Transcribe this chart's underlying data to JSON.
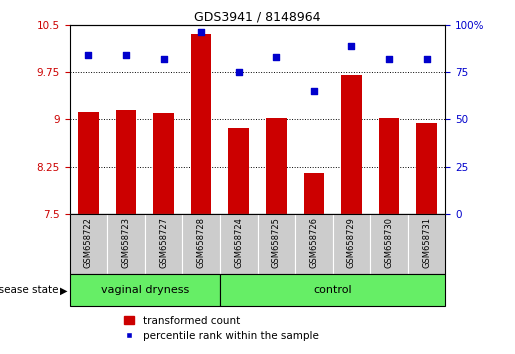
{
  "title": "GDS3941 / 8148964",
  "samples": [
    "GSM658722",
    "GSM658723",
    "GSM658727",
    "GSM658728",
    "GSM658724",
    "GSM658725",
    "GSM658726",
    "GSM658729",
    "GSM658730",
    "GSM658731"
  ],
  "bar_values": [
    9.12,
    9.15,
    9.1,
    10.35,
    8.87,
    9.03,
    8.15,
    9.7,
    9.03,
    8.95
  ],
  "scatter_values": [
    84,
    84,
    82,
    96,
    75,
    83,
    65,
    89,
    82,
    82
  ],
  "bar_color": "#cc0000",
  "scatter_color": "#0000cc",
  "ylim_left": [
    7.5,
    10.5
  ],
  "ylim_right": [
    0,
    100
  ],
  "yticks_left": [
    7.5,
    8.25,
    9.0,
    9.75,
    10.5
  ],
  "yticks_right": [
    0,
    25,
    50,
    75,
    100
  ],
  "hlines": [
    8.25,
    9.0,
    9.75
  ],
  "group1_label": "vaginal dryness",
  "group2_label": "control",
  "group1_count": 4,
  "group2_count": 6,
  "disease_state_label": "disease state",
  "legend_bar_label": "transformed count",
  "legend_scatter_label": "percentile rank within the sample",
  "group_bg_color": "#66ee66",
  "tick_bg_color": "#cccccc",
  "group_border_color": "#000000"
}
